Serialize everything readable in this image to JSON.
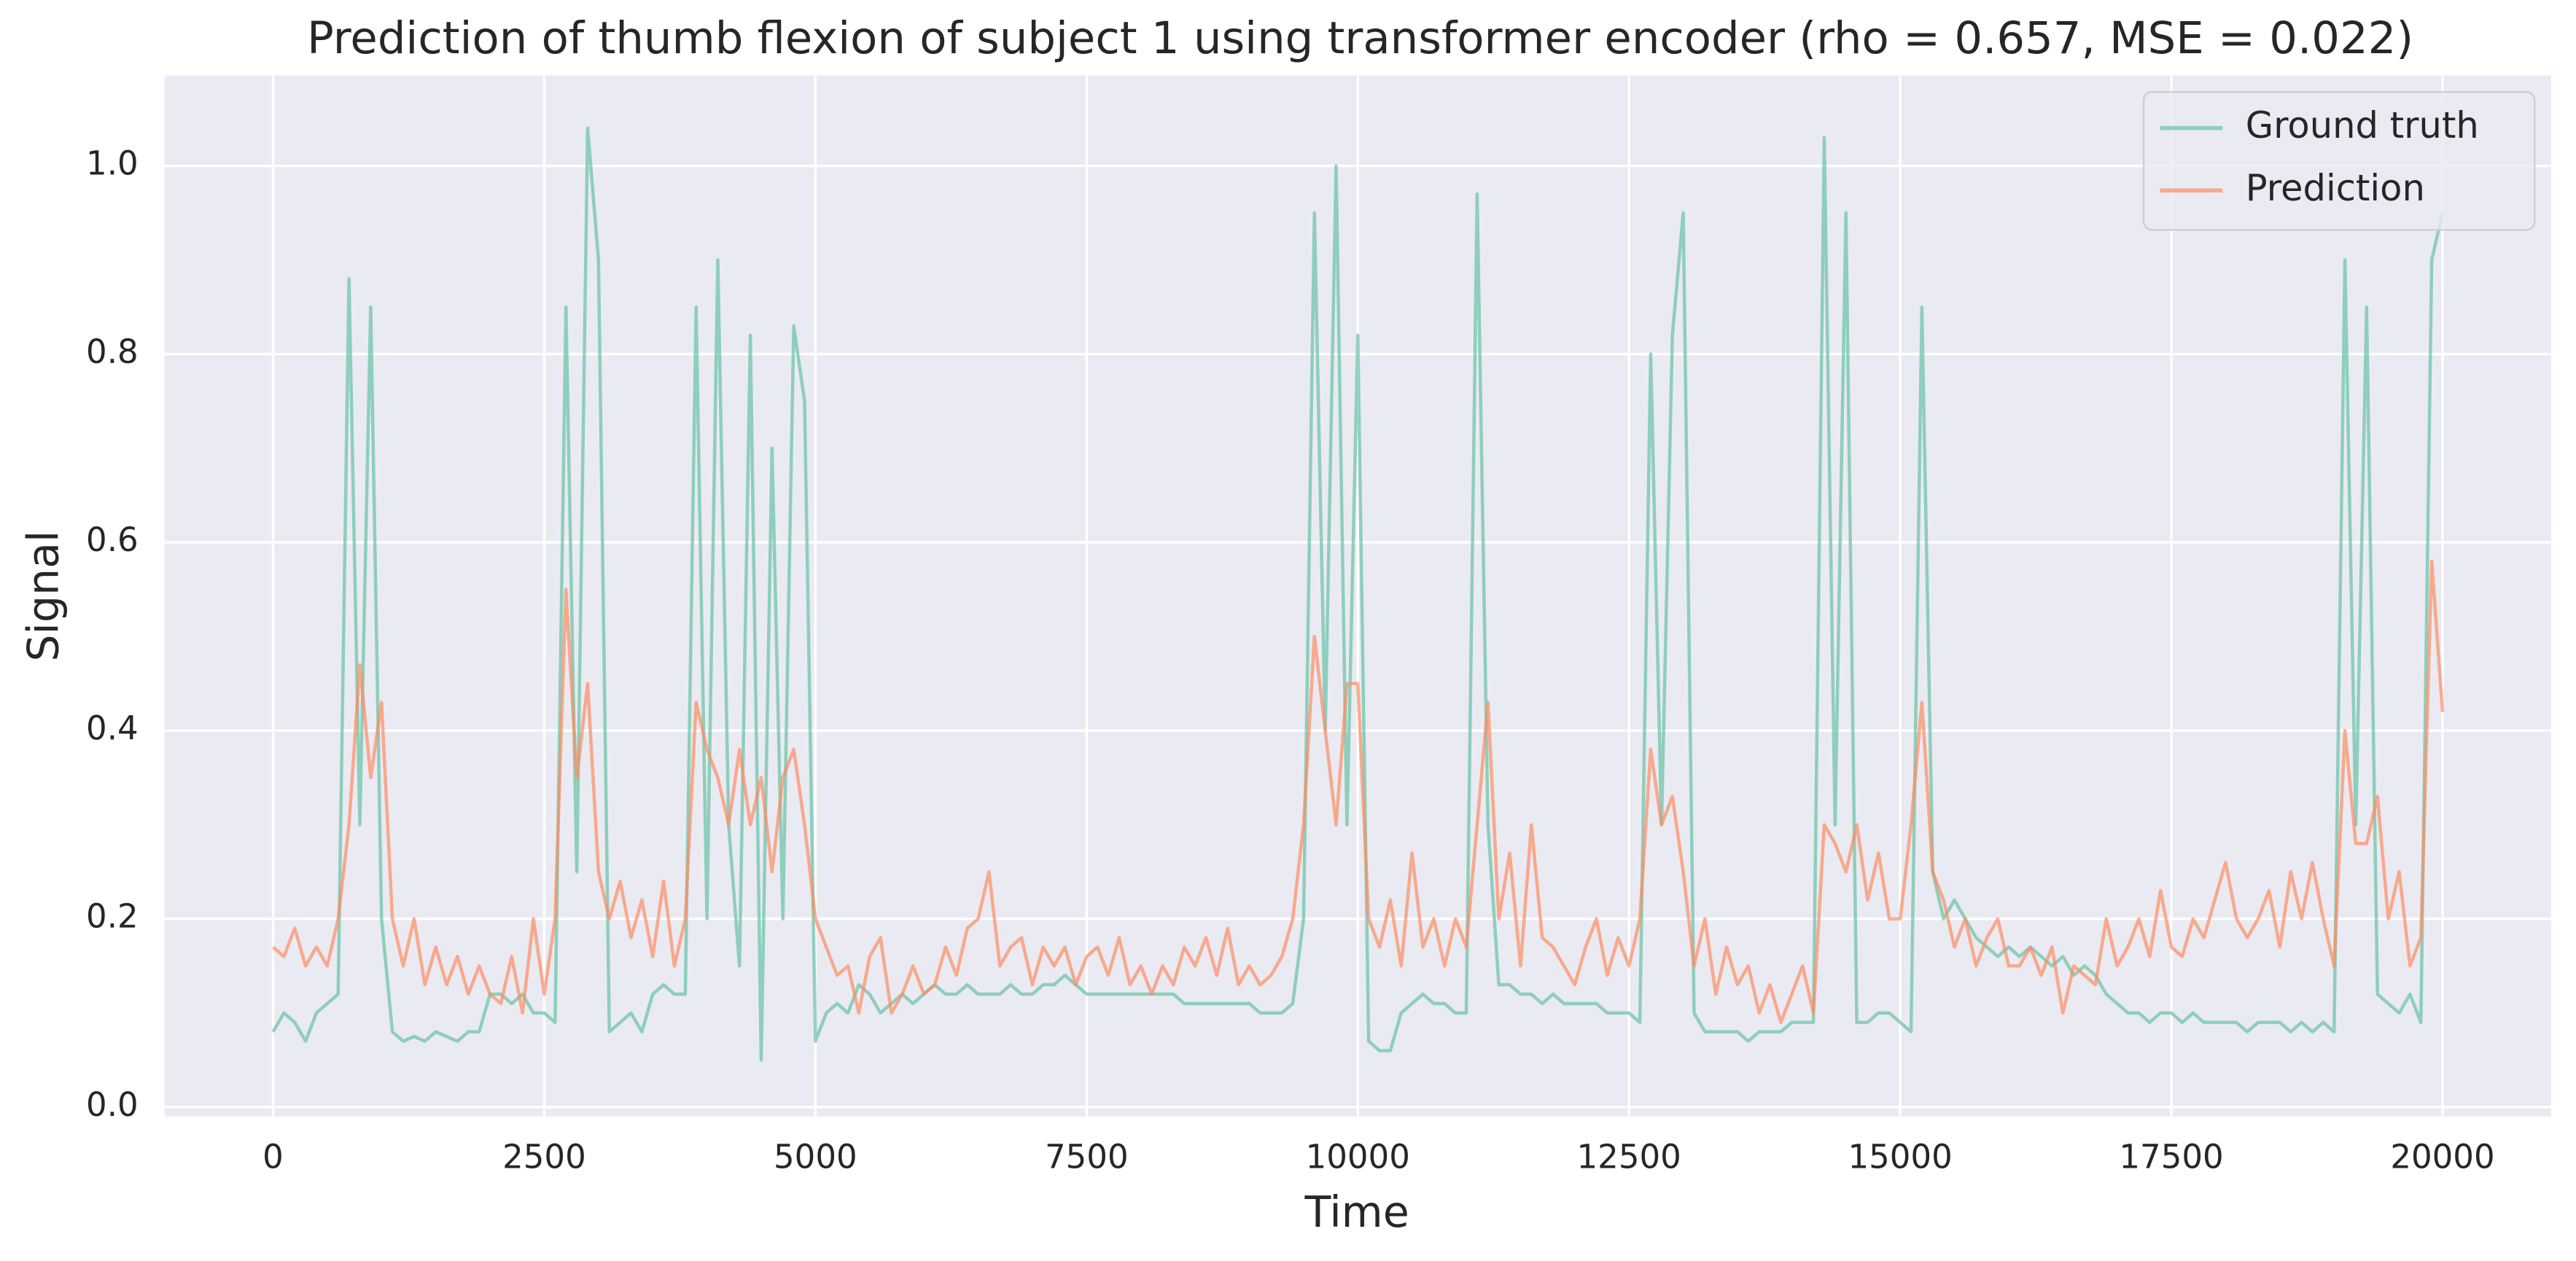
{
  "chart_data": {
    "type": "line",
    "title": "Prediction of thumb flexion of subject 1 using transformer encoder (rho = 0.657, MSE = 0.022)",
    "x_label": "Time",
    "y_label": "Signal",
    "xlim": [
      -1000,
      21000
    ],
    "ylim": [
      -0.01,
      1.096
    ],
    "xticks": [
      0,
      2500,
      5000,
      7500,
      10000,
      12500,
      15000,
      17500,
      20000
    ],
    "yticks": [
      {
        "value": 0,
        "label": "0.0"
      },
      0.2,
      0.4,
      0.6,
      0.8,
      {
        "value": 1,
        "label": "1.0"
      }
    ],
    "grid": true,
    "legend": "upper right",
    "x": [
      0,
      100,
      200,
      300,
      400,
      500,
      600,
      700,
      800,
      900,
      1000,
      1100,
      1200,
      1300,
      1400,
      1500,
      1600,
      1700,
      1800,
      1900,
      2000,
      2100,
      2200,
      2300,
      2400,
      2500,
      2600,
      2700,
      2800,
      2900,
      3000,
      3100,
      3200,
      3300,
      3400,
      3500,
      3600,
      3700,
      3800,
      3900,
      4000,
      4100,
      4200,
      4300,
      4400,
      4500,
      4600,
      4700,
      4800,
      4900,
      5000,
      5100,
      5200,
      5300,
      5400,
      5500,
      5600,
      5700,
      5800,
      5900,
      6000,
      6100,
      6200,
      6300,
      6400,
      6500,
      6600,
      6700,
      6800,
      6900,
      7000,
      7100,
      7200,
      7300,
      7400,
      7500,
      7600,
      7700,
      7800,
      7900,
      8000,
      8100,
      8200,
      8300,
      8400,
      8500,
      8600,
      8700,
      8800,
      8900,
      9000,
      9100,
      9200,
      9300,
      9400,
      9500,
      9600,
      9700,
      9800,
      9900,
      10000,
      10100,
      10200,
      10300,
      10400,
      10500,
      10600,
      10700,
      10800,
      10900,
      11000,
      11100,
      11200,
      11300,
      11400,
      11500,
      11600,
      11700,
      11800,
      11900,
      12000,
      12100,
      12200,
      12300,
      12400,
      12500,
      12600,
      12700,
      12800,
      12900,
      13000,
      13100,
      13200,
      13300,
      13400,
      13500,
      13600,
      13700,
      13800,
      13900,
      14000,
      14100,
      14200,
      14300,
      14400,
      14500,
      14600,
      14700,
      14800,
      14900,
      15000,
      15100,
      15200,
      15300,
      15400,
      15500,
      15600,
      15700,
      15800,
      15900,
      16000,
      16100,
      16200,
      16300,
      16400,
      16500,
      16600,
      16700,
      16800,
      16900,
      17000,
      17100,
      17200,
      17300,
      17400,
      17500,
      17600,
      17700,
      17800,
      17900,
      18000,
      18100,
      18200,
      18300,
      18400,
      18500,
      18600,
      18700,
      18800,
      18900,
      19000,
      19100,
      19200,
      19300,
      19400,
      19500,
      19600,
      19700,
      19800,
      19900,
      20000
    ],
    "series": [
      {
        "name": "Ground truth",
        "color": "#66c2a5",
        "values": [
          0.08,
          0.1,
          0.09,
          0.07,
          0.1,
          0.11,
          0.12,
          0.88,
          0.3,
          0.85,
          0.2,
          0.08,
          0.07,
          0.075,
          0.07,
          0.08,
          0.075,
          0.07,
          0.08,
          0.08,
          0.12,
          0.12,
          0.11,
          0.12,
          0.1,
          0.1,
          0.09,
          0.85,
          0.25,
          1.04,
          0.9,
          0.08,
          0.09,
          0.1,
          0.08,
          0.12,
          0.13,
          0.12,
          0.12,
          0.85,
          0.2,
          0.9,
          0.3,
          0.15,
          0.82,
          0.05,
          0.7,
          0.2,
          0.83,
          0.75,
          0.07,
          0.1,
          0.11,
          0.1,
          0.13,
          0.12,
          0.1,
          0.11,
          0.12,
          0.11,
          0.12,
          0.13,
          0.12,
          0.12,
          0.13,
          0.12,
          0.12,
          0.12,
          0.13,
          0.12,
          0.12,
          0.13,
          0.13,
          0.14,
          0.13,
          0.12,
          0.12,
          0.12,
          0.12,
          0.12,
          0.12,
          0.12,
          0.12,
          0.12,
          0.11,
          0.11,
          0.11,
          0.11,
          0.11,
          0.11,
          0.11,
          0.1,
          0.1,
          0.1,
          0.11,
          0.2,
          0.95,
          0.4,
          1.0,
          0.3,
          0.82,
          0.07,
          0.06,
          0.06,
          0.1,
          0.11,
          0.12,
          0.11,
          0.11,
          0.1,
          0.1,
          0.97,
          0.3,
          0.13,
          0.13,
          0.12,
          0.12,
          0.11,
          0.12,
          0.11,
          0.11,
          0.11,
          0.11,
          0.1,
          0.1,
          0.1,
          0.09,
          0.8,
          0.3,
          0.82,
          0.95,
          0.1,
          0.08,
          0.08,
          0.08,
          0.08,
          0.07,
          0.08,
          0.08,
          0.08,
          0.09,
          0.09,
          0.09,
          1.03,
          0.3,
          0.95,
          0.09,
          0.09,
          0.1,
          0.1,
          0.09,
          0.08,
          0.85,
          0.25,
          0.2,
          0.22,
          0.2,
          0.18,
          0.17,
          0.16,
          0.17,
          0.16,
          0.17,
          0.16,
          0.15,
          0.16,
          0.14,
          0.15,
          0.14,
          0.12,
          0.11,
          0.1,
          0.1,
          0.09,
          0.1,
          0.1,
          0.09,
          0.1,
          0.09,
          0.09,
          0.09,
          0.09,
          0.08,
          0.09,
          0.09,
          0.09,
          0.08,
          0.09,
          0.08,
          0.09,
          0.08,
          0.9,
          0.3,
          0.85,
          0.12,
          0.11,
          0.1,
          0.12,
          0.09,
          0.9,
          0.95
        ]
      },
      {
        "name": "Prediction",
        "color": "#fc8d62",
        "values": [
          0.17,
          0.16,
          0.19,
          0.15,
          0.17,
          0.15,
          0.2,
          0.3,
          0.47,
          0.35,
          0.43,
          0.2,
          0.15,
          0.2,
          0.13,
          0.17,
          0.13,
          0.16,
          0.12,
          0.15,
          0.12,
          0.11,
          0.16,
          0.1,
          0.2,
          0.12,
          0.2,
          0.55,
          0.35,
          0.45,
          0.25,
          0.2,
          0.24,
          0.18,
          0.22,
          0.16,
          0.24,
          0.15,
          0.2,
          0.43,
          0.38,
          0.35,
          0.3,
          0.38,
          0.3,
          0.35,
          0.25,
          0.35,
          0.38,
          0.3,
          0.2,
          0.17,
          0.14,
          0.15,
          0.1,
          0.16,
          0.18,
          0.1,
          0.12,
          0.15,
          0.12,
          0.13,
          0.17,
          0.14,
          0.19,
          0.2,
          0.25,
          0.15,
          0.17,
          0.18,
          0.13,
          0.17,
          0.15,
          0.17,
          0.13,
          0.16,
          0.17,
          0.14,
          0.18,
          0.13,
          0.15,
          0.12,
          0.15,
          0.13,
          0.17,
          0.15,
          0.18,
          0.14,
          0.19,
          0.13,
          0.15,
          0.13,
          0.14,
          0.16,
          0.2,
          0.3,
          0.5,
          0.4,
          0.3,
          0.45,
          0.45,
          0.2,
          0.17,
          0.22,
          0.15,
          0.27,
          0.17,
          0.2,
          0.15,
          0.2,
          0.17,
          0.3,
          0.43,
          0.2,
          0.27,
          0.15,
          0.3,
          0.18,
          0.17,
          0.15,
          0.13,
          0.17,
          0.2,
          0.14,
          0.18,
          0.15,
          0.2,
          0.38,
          0.3,
          0.33,
          0.25,
          0.15,
          0.2,
          0.12,
          0.17,
          0.13,
          0.15,
          0.1,
          0.13,
          0.09,
          0.12,
          0.15,
          0.1,
          0.3,
          0.28,
          0.25,
          0.3,
          0.22,
          0.27,
          0.2,
          0.2,
          0.3,
          0.43,
          0.25,
          0.22,
          0.17,
          0.2,
          0.15,
          0.18,
          0.2,
          0.15,
          0.15,
          0.17,
          0.14,
          0.17,
          0.1,
          0.15,
          0.14,
          0.13,
          0.2,
          0.15,
          0.17,
          0.2,
          0.16,
          0.23,
          0.17,
          0.16,
          0.2,
          0.18,
          0.22,
          0.26,
          0.2,
          0.18,
          0.2,
          0.23,
          0.17,
          0.25,
          0.2,
          0.26,
          0.2,
          0.15,
          0.4,
          0.28,
          0.28,
          0.33,
          0.2,
          0.25,
          0.15,
          0.18,
          0.58,
          0.42
        ]
      }
    ]
  }
}
